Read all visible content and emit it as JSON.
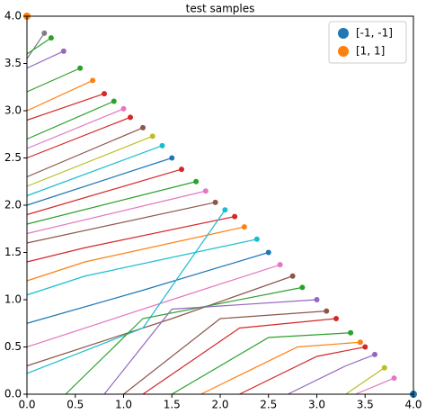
{
  "chart_data": {
    "type": "line",
    "title": "test samples",
    "xlim": [
      0,
      4
    ],
    "ylim": [
      0,
      4
    ],
    "xticks": [
      {
        "value": 0,
        "label": "0.0"
      },
      0.5,
      {
        "value": 1,
        "label": "1.0"
      },
      1.5,
      {
        "value": 2,
        "label": "2.0"
      },
      2.5,
      {
        "value": 3,
        "label": "3.0"
      },
      3.5,
      {
        "value": 4,
        "label": "4.0"
      }
    ],
    "yticks": [
      {
        "value": 0,
        "label": "0.0"
      },
      0.5,
      {
        "value": 1,
        "label": "1.0"
      },
      1.5,
      {
        "value": 2,
        "label": "2.0"
      },
      2.5,
      {
        "value": 3,
        "label": "3.0"
      },
      3.5,
      {
        "value": 4,
        "label": "4.0"
      }
    ],
    "legend": "upper right",
    "points": [
      {
        "name": "[-1, -1]",
        "color": "#1f77b4",
        "x": 4,
        "y": 0
      },
      {
        "name": "[1, 1]",
        "color": "#ff7f0e",
        "x": 0,
        "y": 4
      }
    ],
    "trajectories": [
      {
        "color": "#7f7f7f",
        "x": [
          0,
          0.18
        ],
        "y": [
          3.55,
          3.82
        ]
      },
      {
        "color": "#2ca02c",
        "x": [
          0,
          0.25
        ],
        "y": [
          3.6,
          3.77
        ]
      },
      {
        "color": "#9467bd",
        "x": [
          0,
          0.38
        ],
        "y": [
          3.45,
          3.63
        ]
      },
      {
        "color": "#2ca02c",
        "x": [
          0,
          0.55
        ],
        "y": [
          3.2,
          3.45
        ]
      },
      {
        "color": "#ff7f0e",
        "x": [
          0,
          0.68
        ],
        "y": [
          3.0,
          3.32
        ]
      },
      {
        "color": "#d62728",
        "x": [
          0,
          0.8
        ],
        "y": [
          2.9,
          3.18
        ]
      },
      {
        "color": "#2ca02c",
        "x": [
          0,
          0.9
        ],
        "y": [
          2.7,
          3.1
        ]
      },
      {
        "color": "#e377c2",
        "x": [
          0,
          1.0
        ],
        "y": [
          2.6,
          3.02
        ]
      },
      {
        "color": "#d62728",
        "x": [
          0,
          1.07
        ],
        "y": [
          2.5,
          2.93
        ]
      },
      {
        "color": "#8c564b",
        "x": [
          0,
          1.2
        ],
        "y": [
          2.3,
          2.82
        ]
      },
      {
        "color": "#bcbd22",
        "x": [
          0,
          1.3
        ],
        "y": [
          2.2,
          2.73
        ]
      },
      {
        "color": "#17becf",
        "x": [
          0,
          1.4
        ],
        "y": [
          2.1,
          2.63
        ]
      },
      {
        "color": "#1f77b4",
        "x": [
          0,
          1.5
        ],
        "y": [
          2.0,
          2.5
        ]
      },
      {
        "color": "#d62728",
        "x": [
          0,
          1.6
        ],
        "y": [
          1.9,
          2.38
        ]
      },
      {
        "color": "#2ca02c",
        "x": [
          0,
          1.75
        ],
        "y": [
          1.8,
          2.25
        ]
      },
      {
        "color": "#e377c2",
        "x": [
          0,
          1.85
        ],
        "y": [
          1.7,
          2.15
        ]
      },
      {
        "color": "#8c564b",
        "x": [
          0,
          1.95
        ],
        "y": [
          1.6,
          2.03
        ]
      },
      {
        "color": "#d62728",
        "x": [
          0,
          0.6,
          2.15
        ],
        "y": [
          1.4,
          1.55,
          1.88
        ]
      },
      {
        "color": "#ff7f0e",
        "x": [
          0,
          0.6,
          2.25
        ],
        "y": [
          1.2,
          1.4,
          1.77
        ]
      },
      {
        "color": "#17becf",
        "x": [
          0,
          0.6,
          2.38
        ],
        "y": [
          1.05,
          1.25,
          1.64
        ]
      },
      {
        "color": "#1f77b4",
        "x": [
          0,
          1.2,
          2.5
        ],
        "y": [
          0.75,
          1.1,
          1.5
        ]
      },
      {
        "color": "#e377c2",
        "x": [
          0,
          1.5,
          2.62
        ],
        "y": [
          0.5,
          1.0,
          1.37
        ]
      },
      {
        "color": "#8c564b",
        "x": [
          0,
          1.5,
          2.75
        ],
        "y": [
          0.3,
          0.8,
          1.25
        ]
      },
      {
        "color": "#17becf",
        "x": [
          0,
          1.2,
          2.05
        ],
        "y": [
          0.22,
          0.7,
          1.95
        ]
      },
      {
        "color": "#2ca02c",
        "x": [
          0.4,
          1.2,
          2.85
        ],
        "y": [
          0,
          0.8,
          1.13
        ]
      },
      {
        "color": "#9467bd",
        "x": [
          0.8,
          1.5,
          3.0
        ],
        "y": [
          0,
          0.9,
          1.0
        ]
      },
      {
        "color": "#8c564b",
        "x": [
          1.0,
          2.0,
          3.1
        ],
        "y": [
          0,
          0.8,
          0.88
        ]
      },
      {
        "color": "#d62728",
        "x": [
          1.2,
          2.2,
          3.2
        ],
        "y": [
          0,
          0.7,
          0.8
        ]
      },
      {
        "color": "#2ca02c",
        "x": [
          1.5,
          2.5,
          3.35
        ],
        "y": [
          0,
          0.6,
          0.65
        ]
      },
      {
        "color": "#ff7f0e",
        "x": [
          1.8,
          2.8,
          3.45
        ],
        "y": [
          0,
          0.5,
          0.55
        ]
      },
      {
        "color": "#d62728",
        "x": [
          2.2,
          3.0,
          3.5
        ],
        "y": [
          0,
          0.4,
          0.5
        ]
      },
      {
        "color": "#9467bd",
        "x": [
          2.7,
          3.3,
          3.6
        ],
        "y": [
          0,
          0.3,
          0.42
        ]
      },
      {
        "color": "#bcbd22",
        "x": [
          3.3,
          3.7
        ],
        "y": [
          0,
          0.28
        ]
      },
      {
        "color": "#e377c2",
        "x": [
          3.4,
          3.8
        ],
        "y": [
          0,
          0.17
        ]
      }
    ]
  }
}
